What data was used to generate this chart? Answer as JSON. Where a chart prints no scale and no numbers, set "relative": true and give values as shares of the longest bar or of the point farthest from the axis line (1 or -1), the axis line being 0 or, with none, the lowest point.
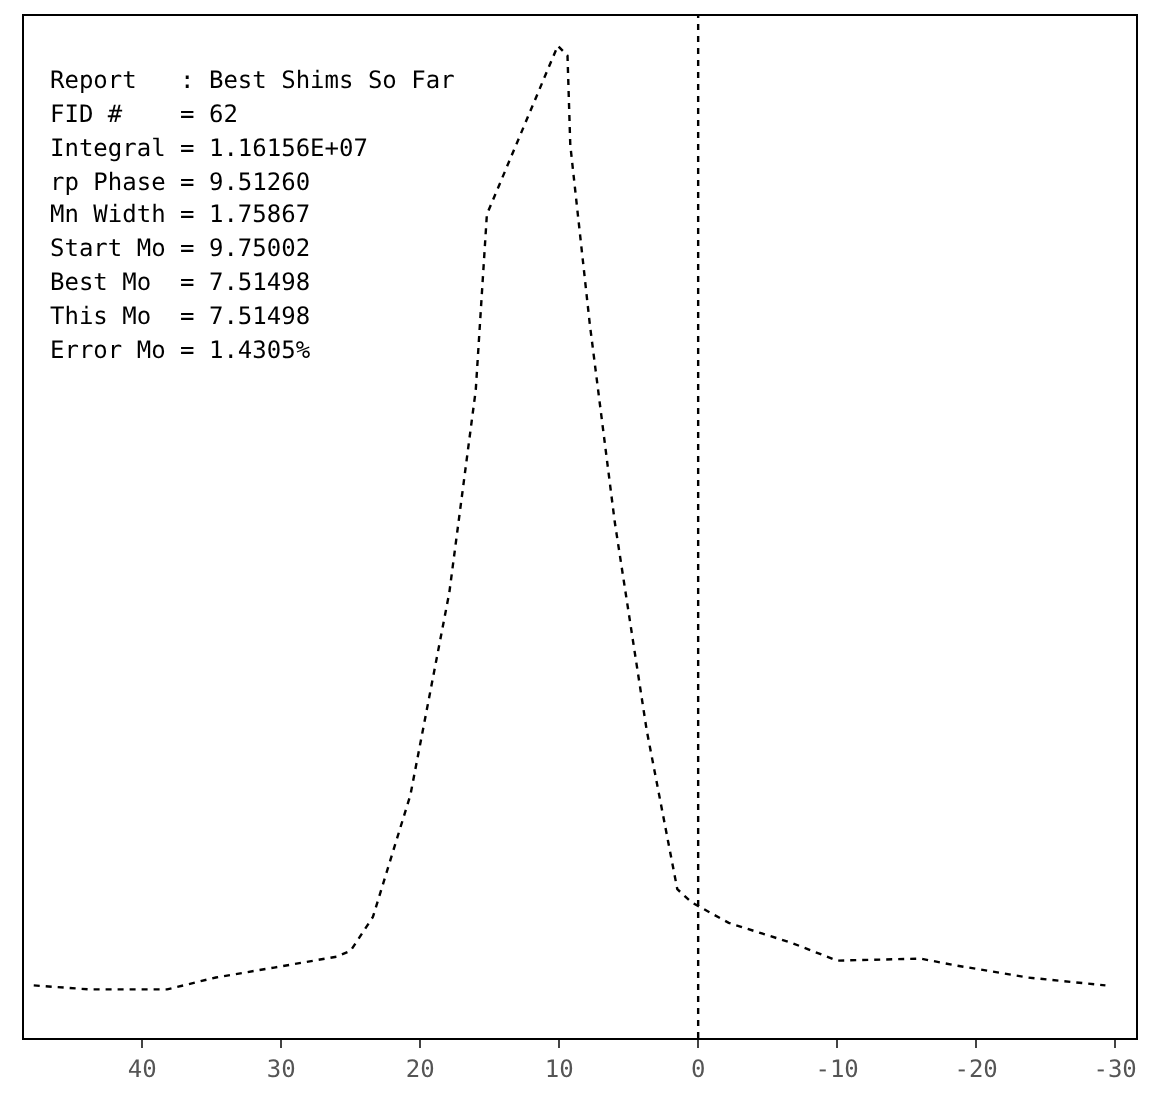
{
  "chart_data": {
    "type": "line",
    "relative": true,
    "color": "#000000",
    "line_style": "dotted",
    "marker": "none",
    "legend": false,
    "tick_labels": "x",
    "x": [
      47.8,
      43.8,
      40,
      38.2,
      34.7,
      30.5,
      26,
      25,
      23.4,
      20.7,
      17.9,
      16.0,
      15.2,
      10.1,
      9.4,
      9.2,
      7.8,
      6.0,
      3.7,
      1.5,
      0.5,
      -2.2,
      -6.7,
      -10,
      -16,
      -18.6,
      -23.7,
      -29.3
    ],
    "values": [
      0.053,
      0.049,
      0.049,
      0.049,
      0.061,
      0.071,
      0.082,
      0.088,
      0.122,
      0.245,
      0.449,
      0.653,
      0.83,
      1.0,
      0.99,
      0.9,
      0.72,
      0.52,
      0.31,
      0.15,
      0.137,
      0.116,
      0.096,
      0.078,
      0.08,
      0.073,
      0.061,
      0.053
    ],
    "xlim": [
      48.5,
      -31.5
    ],
    "xticks": [
      40,
      30,
      20,
      10,
      0,
      -10,
      -20,
      -30
    ],
    "ref_lines": [
      {
        "axis": "x",
        "value": 0,
        "line_style": "dotted",
        "color": "#000000"
      }
    ],
    "annotations": [
      "Report   : Best Shims So Far",
      "FID #    = 62",
      "Integral = 1.16156E+07",
      "rp Phase = 9.51260",
      "Mn Width = 1.75867",
      "Start Mo = 9.75002",
      "Best Mo  = 7.51498",
      "This Mo  = 7.51498",
      "Error Mo = 1.4305%"
    ]
  }
}
